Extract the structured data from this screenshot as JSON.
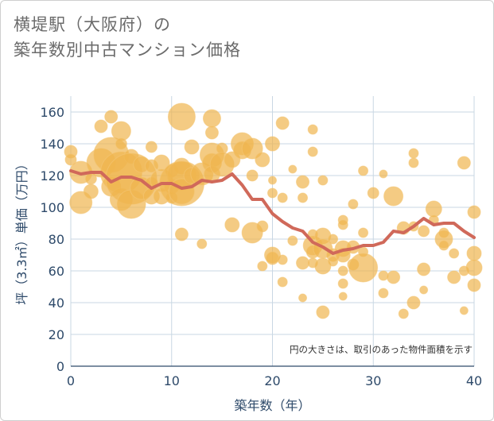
{
  "title_line1": "横堤駅（大阪府）の",
  "title_line2": "築年数別中古マンション価格",
  "chart_data": {
    "type": "scatter",
    "xlabel": "築年数（年）",
    "ylabel": "坪（3.3㎡）単価（万円）",
    "xlim": [
      0,
      40
    ],
    "ylim": [
      0,
      170
    ],
    "xticks": [
      0,
      10,
      20,
      30,
      40
    ],
    "yticks": [
      0,
      20,
      40,
      60,
      80,
      100,
      120,
      140,
      160
    ],
    "grid": true,
    "annotation": "円の大きさは、取引のあった物件面積を示す",
    "colors": {
      "bubble": "#f0b54f",
      "line": "#d0695a",
      "grid": "#c9d7e3"
    },
    "bubbles": [
      [
        0,
        135,
        8
      ],
      [
        0,
        130,
        7
      ],
      [
        1,
        122,
        14
      ],
      [
        1,
        103,
        14
      ],
      [
        2,
        110,
        9
      ],
      [
        2,
        118,
        7
      ],
      [
        3,
        151,
        8
      ],
      [
        3,
        128,
        18
      ],
      [
        4,
        157,
        8
      ],
      [
        4,
        133,
        22
      ],
      [
        4,
        113,
        12
      ],
      [
        5,
        148,
        12
      ],
      [
        5,
        140,
        7
      ],
      [
        5,
        122,
        26
      ],
      [
        5,
        105,
        14
      ],
      [
        6,
        132,
        9
      ],
      [
        6,
        118,
        32
      ],
      [
        6,
        102,
        18
      ],
      [
        7,
        127,
        10
      ],
      [
        7,
        112,
        14
      ],
      [
        8,
        138,
        7
      ],
      [
        8,
        126,
        8
      ],
      [
        8,
        115,
        8
      ],
      [
        8,
        107,
        10
      ],
      [
        9,
        128,
        10
      ],
      [
        9,
        117,
        14
      ],
      [
        9,
        107,
        10
      ],
      [
        10,
        123,
        8
      ],
      [
        10,
        113,
        9
      ],
      [
        10,
        106,
        7
      ],
      [
        11,
        83,
        8
      ],
      [
        11,
        157,
        17
      ],
      [
        11,
        126,
        10
      ],
      [
        11,
        120,
        18
      ],
      [
        11,
        115,
        28
      ],
      [
        11,
        110,
        16
      ],
      [
        12,
        138,
        9
      ],
      [
        12,
        120,
        10
      ],
      [
        13,
        121,
        14
      ],
      [
        13,
        77,
        6
      ],
      [
        14,
        156,
        11
      ],
      [
        14,
        147,
        8
      ],
      [
        14,
        133,
        15
      ],
      [
        14,
        128,
        12
      ],
      [
        14,
        121,
        10
      ],
      [
        15,
        137,
        7
      ],
      [
        15,
        127,
        15
      ],
      [
        16,
        89,
        9
      ],
      [
        16,
        130,
        10
      ],
      [
        17,
        140,
        14
      ],
      [
        17,
        136,
        11
      ],
      [
        18,
        137,
        13
      ],
      [
        18,
        120,
        7
      ],
      [
        18,
        84,
        13
      ],
      [
        19,
        130,
        9
      ],
      [
        19,
        88,
        7
      ],
      [
        19,
        63,
        6
      ],
      [
        20,
        140,
        9
      ],
      [
        20,
        117,
        5
      ],
      [
        20,
        109,
        6
      ],
      [
        20,
        70,
        10
      ],
      [
        20,
        68,
        8
      ],
      [
        21,
        153,
        8
      ],
      [
        21,
        106,
        6
      ],
      [
        21,
        67,
        6
      ],
      [
        21,
        53,
        6
      ],
      [
        22,
        124,
        5
      ],
      [
        22,
        79,
        6
      ],
      [
        23,
        116,
        8
      ],
      [
        23,
        106,
        6
      ],
      [
        23,
        65,
        8
      ],
      [
        23,
        43,
        5
      ],
      [
        24,
        149,
        6
      ],
      [
        24,
        135,
        6
      ],
      [
        24,
        83,
        6
      ],
      [
        24,
        76,
        12
      ],
      [
        24,
        72,
        8
      ],
      [
        24,
        65,
        6
      ],
      [
        25,
        117,
        6
      ],
      [
        25,
        82,
        10
      ],
      [
        25,
        74,
        12
      ],
      [
        25,
        63,
        10
      ],
      [
        25,
        34,
        8
      ],
      [
        26,
        80,
        6
      ],
      [
        26,
        70,
        8
      ],
      [
        26,
        66,
        6
      ],
      [
        27,
        92,
        6
      ],
      [
        27,
        89,
        6
      ],
      [
        27,
        74,
        10
      ],
      [
        27,
        70,
        9
      ],
      [
        27,
        60,
        6
      ],
      [
        27,
        52,
        6
      ],
      [
        27,
        44,
        5
      ],
      [
        28,
        102,
        6
      ],
      [
        28,
        75,
        8
      ],
      [
        28,
        64,
        7
      ],
      [
        29,
        123,
        6
      ],
      [
        29,
        84,
        6
      ],
      [
        29,
        72,
        6
      ],
      [
        29,
        62,
        18
      ],
      [
        30,
        109,
        7
      ],
      [
        31,
        121,
        5
      ],
      [
        31,
        57,
        6
      ],
      [
        31,
        46,
        6
      ],
      [
        32,
        107,
        12
      ],
      [
        32,
        56,
        8
      ],
      [
        33,
        87,
        8
      ],
      [
        33,
        33,
        6
      ],
      [
        34,
        134,
        6
      ],
      [
        34,
        128,
        6
      ],
      [
        34,
        88,
        6
      ],
      [
        34,
        40,
        8
      ],
      [
        35,
        85,
        7
      ],
      [
        35,
        61,
        8
      ],
      [
        35,
        48,
        5
      ],
      [
        36,
        99,
        10
      ],
      [
        36,
        92,
        6
      ],
      [
        37,
        84,
        6
      ],
      [
        37,
        80,
        11
      ],
      [
        37,
        76,
        6
      ],
      [
        38,
        56,
        8
      ],
      [
        38,
        71,
        6
      ],
      [
        39,
        128,
        8
      ],
      [
        39,
        60,
        6
      ],
      [
        39,
        35,
        5
      ],
      [
        40,
        97,
        8
      ],
      [
        40,
        71,
        9
      ],
      [
        40,
        62,
        10
      ],
      [
        40,
        51,
        8
      ]
    ],
    "trend_x": [
      0,
      1,
      2,
      3,
      4,
      5,
      6,
      7,
      8,
      9,
      10,
      11,
      12,
      13,
      14,
      15,
      16,
      17,
      18,
      19,
      20,
      21,
      22,
      23,
      24,
      25,
      26,
      27,
      28,
      29,
      30,
      31,
      32,
      33,
      34,
      35,
      36,
      37,
      38,
      39,
      40
    ],
    "trend_y": [
      123,
      121,
      122,
      122,
      116,
      119,
      119,
      117,
      112,
      115,
      115,
      112,
      113,
      117,
      116,
      117,
      121,
      114,
      105,
      105,
      96,
      91,
      87,
      85,
      78,
      75,
      71,
      73,
      74,
      76,
      76,
      78,
      85,
      84,
      88,
      93,
      89,
      90,
      90,
      85,
      81
    ]
  }
}
